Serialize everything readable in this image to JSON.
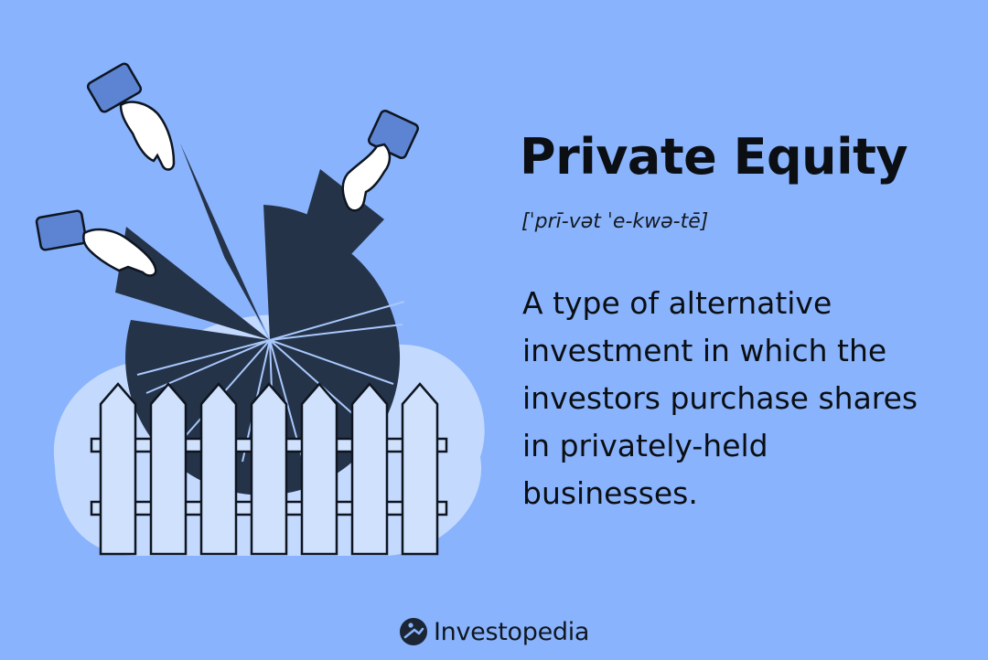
{
  "title": "Private Equity",
  "pronunciation": "[ˈprī-vət ˈe-kwə-tē]",
  "definition": "A type of alternative investment in which the investors purchase shares in privately-held businesses.",
  "brand": "Investopedia",
  "colors": {
    "background": "#89b3fc",
    "pie": "#253349",
    "fence": "#cfe1fd",
    "cloud": "#c3d9fd",
    "sleeve": "#5c84d3",
    "text": "#0b0f14"
  },
  "icons": [
    "hand-icon",
    "pie-chart-icon",
    "picket-fence-icon",
    "investopedia-logo-icon"
  ]
}
